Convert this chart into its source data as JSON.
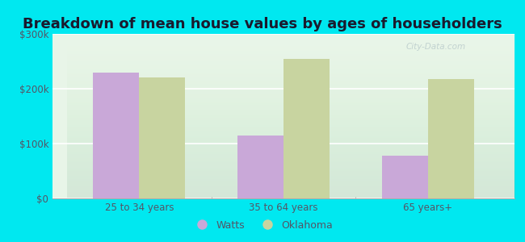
{
  "title": "Breakdown of mean house values by ages of householders",
  "categories": [
    "25 to 34 years",
    "35 to 64 years",
    "65 years+"
  ],
  "watts_values": [
    230000,
    115000,
    78000
  ],
  "oklahoma_values": [
    220000,
    255000,
    218000
  ],
  "ylim": [
    0,
    300000
  ],
  "yticks": [
    0,
    100000,
    200000,
    300000
  ],
  "ytick_labels": [
    "$0",
    "$100k",
    "$200k",
    "$300k"
  ],
  "watts_color": "#c9a8d8",
  "oklahoma_color": "#c8d4a0",
  "background_outer": "#00e8f0",
  "background_inner": "#e8f5e8",
  "legend_watts": "Watts",
  "legend_oklahoma": "Oklahoma",
  "bar_width": 0.32,
  "title_fontsize": 14,
  "title_color": "#1a1a2e",
  "tick_label_color": "#555566",
  "watermark": "City-Data.com"
}
